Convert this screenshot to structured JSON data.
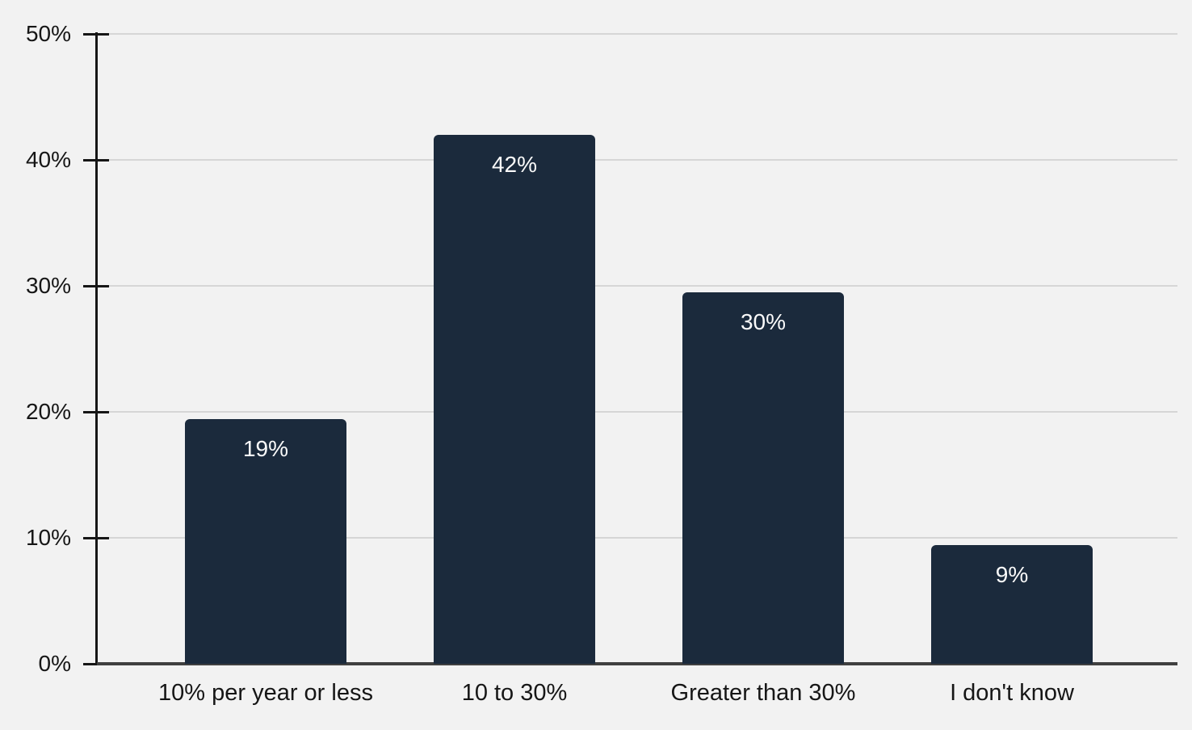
{
  "chart_data": {
    "type": "bar",
    "categories": [
      "10% per year or less",
      "10 to 30%",
      "Greater than 30%",
      "I don't know"
    ],
    "values": [
      19.4,
      42,
      29.5,
      9.4
    ],
    "value_labels": [
      "19%",
      "42%",
      "30%",
      "9%"
    ],
    "ylim": [
      0,
      50
    ],
    "y_ticks": {
      "values": [
        0,
        10,
        20,
        30,
        40,
        50
      ],
      "labels": [
        "0%",
        "10%",
        "20%",
        "30%",
        "40%",
        "50%"
      ]
    },
    "grid": "horizontal",
    "legend": "none",
    "colors": {
      "background": "#f2f2f2",
      "bar": "#1b2a3c",
      "bar_label_text": "#fafafa",
      "gridline": "#d6d6d6",
      "axis": "#161616",
      "baseline": "#404040",
      "tick_label_text": "#161616"
    }
  }
}
